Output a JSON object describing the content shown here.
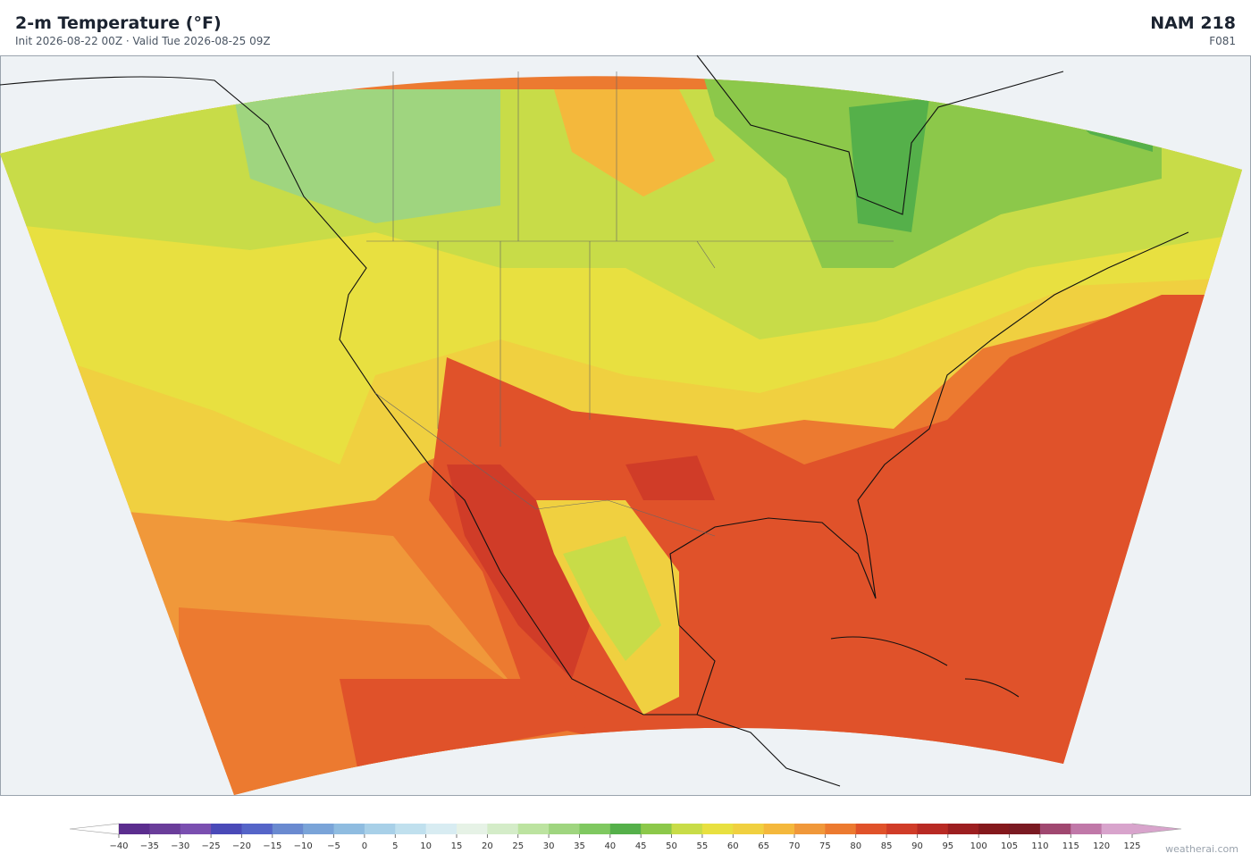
{
  "header": {
    "title": "2-m Temperature  (°F)",
    "subtitle": "Init 2026-08-22 00Z  ·  Valid Tue 2026-08-25 09Z",
    "model": "NAM  218",
    "forecast_hour": "F081"
  },
  "colorbar": {
    "ticks": [
      {
        "value": -40,
        "label": "−40"
      },
      {
        "value": -35,
        "label": "−35"
      },
      {
        "value": -30,
        "label": "−30"
      },
      {
        "value": -25,
        "label": "−25"
      },
      {
        "value": -20,
        "label": "−20"
      },
      {
        "value": -15,
        "label": "−15"
      },
      {
        "value": -10,
        "label": "−10"
      },
      {
        "value": -5,
        "label": "−5"
      },
      0,
      5,
      10,
      15,
      20,
      25,
      30,
      35,
      40,
      45,
      50,
      55,
      60,
      65,
      70,
      75,
      80,
      85,
      90,
      95,
      100,
      105,
      110,
      115,
      120,
      125
    ],
    "colors": [
      "#5b2d8e",
      "#6a3d9a",
      "#7a4fb0",
      "#4a4ab8",
      "#5565c8",
      "#6a8ad0",
      "#7aa4d8",
      "#8fbce0",
      "#a8d0e8",
      "#c0e0ee",
      "#d8ecf2",
      "#e6f2e6",
      "#d4ecc8",
      "#bce3a0",
      "#9fd57f",
      "#7fc860",
      "#55b04a",
      "#8cc84a",
      "#c8dc48",
      "#e8e040",
      "#f0d040",
      "#f4b83c",
      "#f0983a",
      "#ec7a30",
      "#e0522a",
      "#d03c28",
      "#b82a24",
      "#9c1e20",
      "#84181c",
      "#7a1a22",
      "#a04870",
      "#c078a8",
      "#d8a4cc"
    ],
    "under_color": "#ffffff",
    "over_color": "#d8a4cc"
  },
  "footer": {
    "watermark": "weatherai.com"
  }
}
